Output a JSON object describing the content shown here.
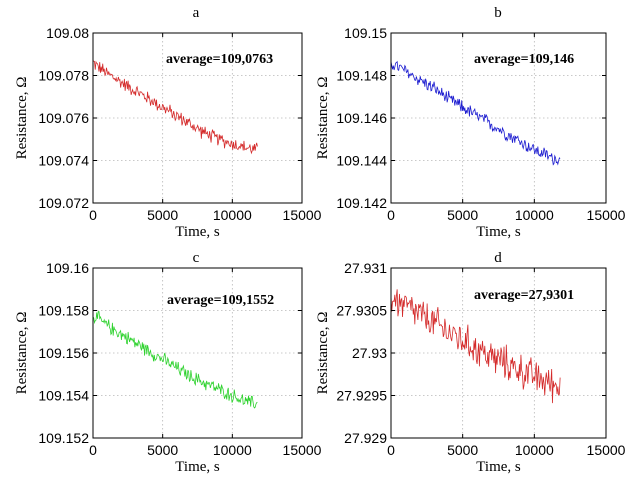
{
  "chart_data": [
    {
      "type": "line",
      "panel_label": "a",
      "annotation": "average=109,0763",
      "xlabel": "Time, s",
      "ylabel": "Resistance, Ω",
      "xlim": [
        0,
        15000
      ],
      "ylim": [
        109.072,
        109.08
      ],
      "xticks": [
        0,
        5000,
        10000,
        15000
      ],
      "xtick_labels": [
        "0",
        "5000",
        "10000",
        "15000"
      ],
      "yticks": [
        109.072,
        109.074,
        109.076,
        109.078,
        109.08
      ],
      "ytick_labels": [
        "109.072",
        "109.074",
        "109.076",
        "109.078",
        "109.08"
      ],
      "grid": true,
      "color": "#d42a2a",
      "series": [
        {
          "x": [
            0,
            1000,
            2000,
            3000,
            4000,
            5000,
            6000,
            7000,
            8000,
            9000,
            10000,
            11000,
            11800
          ],
          "values": [
            109.0786,
            109.0781,
            109.0777,
            109.0773,
            109.0769,
            109.0765,
            109.0761,
            109.0757,
            109.0753,
            109.075,
            109.0748,
            109.0746,
            109.0745
          ],
          "noise": 0.0004
        }
      ]
    },
    {
      "type": "line",
      "panel_label": "b",
      "annotation": "average=109,146",
      "xlabel": "Time, s",
      "ylabel": "Resistance, Ω",
      "xlim": [
        0,
        15000
      ],
      "ylim": [
        109.142,
        109.15
      ],
      "xticks": [
        0,
        5000,
        10000,
        15000
      ],
      "xtick_labels": [
        "0",
        "5000",
        "10000",
        "15000"
      ],
      "yticks": [
        109.142,
        109.144,
        109.146,
        109.148,
        109.15
      ],
      "ytick_labels": [
        "109.142",
        "109.144",
        "109.146",
        "109.148",
        "109.15"
      ],
      "grid": true,
      "color": "#1c1cd0",
      "series": [
        {
          "x": [
            0,
            1000,
            2000,
            3000,
            4000,
            5000,
            6000,
            7000,
            8000,
            9000,
            10000,
            11000,
            11800
          ],
          "values": [
            109.1486,
            109.1482,
            109.1478,
            109.1474,
            109.1469,
            109.1465,
            109.1461,
            109.1457,
            109.1453,
            109.1449,
            109.1445,
            109.1442,
            109.144
          ],
          "noise": 0.0004
        }
      ]
    },
    {
      "type": "line",
      "panel_label": "c",
      "annotation": "average=109,1552",
      "xlabel": "Time, s",
      "ylabel": "Resistance, Ω",
      "xlim": [
        0,
        15000
      ],
      "ylim": [
        109.152,
        109.16
      ],
      "xticks": [
        0,
        5000,
        10000,
        15000
      ],
      "xtick_labels": [
        "0",
        "5000",
        "10000",
        "15000"
      ],
      "yticks": [
        109.152,
        109.154,
        109.156,
        109.158,
        109.16
      ],
      "ytick_labels": [
        "109.152",
        "109.154",
        "109.156",
        "109.158",
        "109.16"
      ],
      "grid": true,
      "color": "#2ed22e",
      "series": [
        {
          "x": [
            0,
            1000,
            2000,
            3000,
            4000,
            5000,
            6000,
            7000,
            8000,
            9000,
            10000,
            11000,
            11800
          ],
          "values": [
            109.1578,
            109.1573,
            109.1569,
            109.1565,
            109.1561,
            109.1557,
            109.1553,
            109.1549,
            109.1546,
            109.1543,
            109.154,
            109.1537,
            109.1536
          ],
          "noise": 0.0004
        }
      ]
    },
    {
      "type": "line",
      "panel_label": "d",
      "annotation": "average=27,9301",
      "xlabel": "Time, s",
      "ylabel": "Resistance, Ω",
      "xlim": [
        0,
        15000
      ],
      "ylim": [
        27.929,
        27.931
      ],
      "xticks": [
        0,
        5000,
        10000,
        15000
      ],
      "xtick_labels": [
        "0",
        "5000",
        "10000",
        "15000"
      ],
      "yticks": [
        27.929,
        27.9295,
        27.93,
        27.9305,
        27.931
      ],
      "ytick_labels": [
        "27.929",
        "27.9295",
        "27.93",
        "27.9305",
        "27.931"
      ],
      "grid": true,
      "color": "#d42a2a",
      "series": [
        {
          "x": [
            0,
            1000,
            2000,
            3000,
            4000,
            5000,
            6000,
            7000,
            8000,
            9000,
            10000,
            11000,
            11800
          ],
          "values": [
            27.93065,
            27.93055,
            27.93045,
            27.93035,
            27.93025,
            27.93015,
            27.93005,
            27.92995,
            27.92988,
            27.9298,
            27.92972,
            27.92965,
            27.9296
          ],
          "noise": 0.00025
        }
      ]
    }
  ]
}
